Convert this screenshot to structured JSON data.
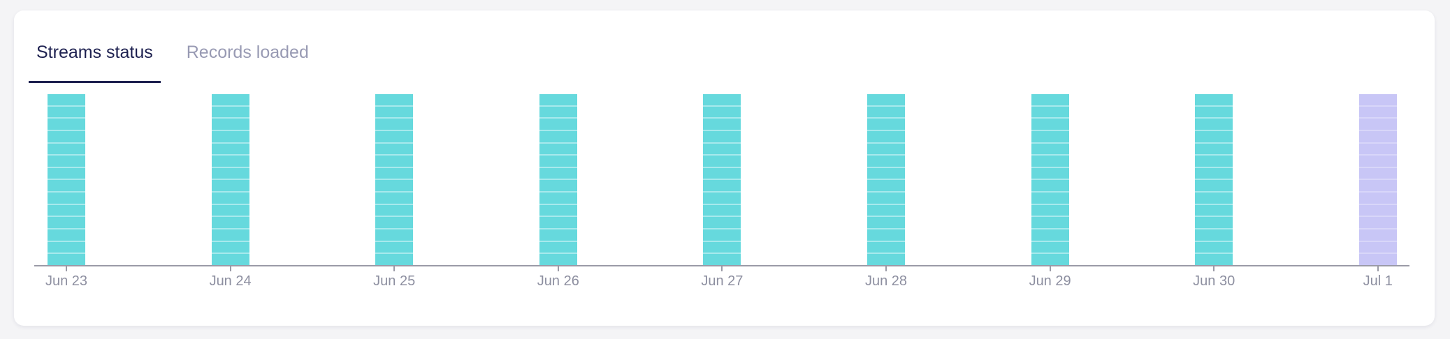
{
  "page": {
    "background_color": "#f4f4f6",
    "card_background_color": "#ffffff"
  },
  "tabs": [
    {
      "id": "streams-status",
      "label": "Streams status",
      "active": true
    },
    {
      "id": "records-loaded",
      "label": "Records loaded",
      "active": false
    }
  ],
  "colors": {
    "active_tab_text": "#1e2150",
    "active_tab_underline": "#1e2150",
    "inactive_tab_text": "#989ab3",
    "axis": "#9b9ba7",
    "axis_label_text": "#8d8fa0",
    "bar_synced": "#66d9dd",
    "bar_synced_divider": "#a7e9ec",
    "bar_pending": "#c8c6f6",
    "bar_pending_divider": "#d8d6f9"
  },
  "chart_data": {
    "type": "bar",
    "title": "Streams status",
    "categories": [
      "Jun 23",
      "Jun 24",
      "Jun 25",
      "Jun 26",
      "Jun 27",
      "Jun 28",
      "Jun 29",
      "Jun 30",
      "Jul 1"
    ],
    "series": [
      {
        "name": "streams",
        "values": [
          14,
          14,
          14,
          14,
          14,
          14,
          14,
          14,
          14
        ]
      }
    ],
    "segments_per_bar": 14,
    "bar_status": [
      "synced",
      "synced",
      "synced",
      "synced",
      "synced",
      "synced",
      "synced",
      "synced",
      "pending"
    ],
    "xlabel": "",
    "ylabel": "",
    "legend": "none",
    "grid": false,
    "bars_full_height": true
  }
}
